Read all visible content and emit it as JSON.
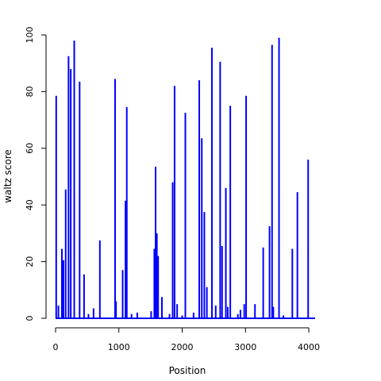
{
  "chart_data": {
    "type": "line",
    "title": "",
    "xlabel": "Position",
    "ylabel": "waltz score",
    "xlim": [
      0,
      4100
    ],
    "ylim": [
      0,
      100
    ],
    "x_ticks": [
      0,
      1000,
      2000,
      3000,
      4000
    ],
    "y_ticks": [
      0,
      20,
      40,
      60,
      80,
      100
    ],
    "grid": false,
    "line_color": "#0000ff",
    "series": [
      {
        "x": [
          10,
          45,
          100,
          125,
          160,
          205,
          240,
          295,
          380,
          450,
          520,
          600,
          700,
          940,
          955,
          1060,
          1105,
          1125,
          1200,
          1290,
          1510,
          1560,
          1580,
          1600,
          1620,
          1680,
          1800,
          1850,
          1880,
          1920,
          2000,
          2050,
          2180,
          2270,
          2310,
          2350,
          2390,
          2470,
          2530,
          2600,
          2630,
          2690,
          2720,
          2760,
          2880,
          2920,
          2980,
          3010,
          3150,
          3280,
          3380,
          3420,
          3440,
          3530,
          3600,
          3740,
          3820,
          3990
        ],
        "y": [
          78.5,
          4.5,
          24.5,
          20.5,
          45.5,
          92.5,
          88,
          98,
          83.5,
          15.5,
          1.5,
          3.5,
          27.5,
          84.5,
          6,
          17,
          41.5,
          74.5,
          1.5,
          2,
          2.5,
          24.5,
          53.5,
          30,
          22,
          7.5,
          1.5,
          48,
          82,
          5,
          1,
          72.5,
          2,
          84,
          63.5,
          37.5,
          11,
          95.5,
          4.5,
          90.5,
          25.5,
          46,
          4,
          75,
          1.5,
          3,
          5,
          78.5,
          5,
          25,
          32.5,
          96.5,
          4,
          99,
          1,
          24.5,
          44.5,
          56
        ]
      }
    ]
  }
}
